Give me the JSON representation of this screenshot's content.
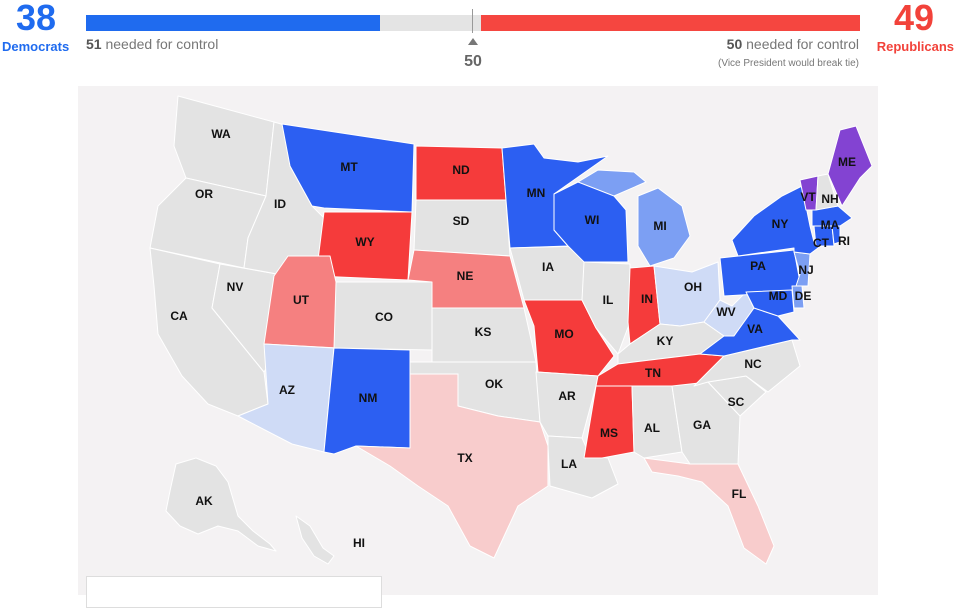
{
  "header": {
    "democrats": {
      "count": "38",
      "label": "Democrats",
      "needed_num": "51",
      "needed_text": " needed for control",
      "color": "#1f6bef"
    },
    "republicans": {
      "count": "49",
      "label": "Republicans",
      "needed_num": "50",
      "needed_text": " needed for control",
      "note": "(Vice President would break tie)",
      "color": "#f2423a"
    },
    "midpoint": "50",
    "seats": {
      "total": 100,
      "dem_fill": 0.38,
      "rep_fill": 0.49
    }
  },
  "colors": {
    "dem_solid": "#2c5ff2",
    "dem_lean": "#7c9ff3",
    "dem_light": "#cfdbf6",
    "rep_solid": "#f53b3b",
    "rep_lean": "#f58080",
    "rep_light": "#f8cccc",
    "independent": "#8343d2",
    "no_race": "#e3e3e3"
  },
  "states": {
    "WA": {
      "label": "WA",
      "status": "no_race"
    },
    "OR": {
      "label": "OR",
      "status": "no_race"
    },
    "CA": {
      "label": "CA",
      "status": "no_race"
    },
    "ID": {
      "label": "ID",
      "status": "no_race"
    },
    "NV": {
      "label": "NV",
      "status": "no_race"
    },
    "MT": {
      "label": "MT",
      "status": "dem_solid"
    },
    "WY": {
      "label": "WY",
      "status": "rep_solid"
    },
    "UT": {
      "label": "UT",
      "status": "rep_lean"
    },
    "AZ": {
      "label": "AZ",
      "status": "dem_light"
    },
    "CO": {
      "label": "CO",
      "status": "no_race"
    },
    "NM": {
      "label": "NM",
      "status": "dem_solid"
    },
    "ND": {
      "label": "ND",
      "status": "rep_solid"
    },
    "SD": {
      "label": "SD",
      "status": "no_race"
    },
    "NE": {
      "label": "NE",
      "status": "rep_lean"
    },
    "KS": {
      "label": "KS",
      "status": "no_race"
    },
    "OK": {
      "label": "OK",
      "status": "no_race"
    },
    "TX": {
      "label": "TX",
      "status": "rep_light"
    },
    "MN": {
      "label": "MN",
      "status": "dem_solid"
    },
    "IA": {
      "label": "IA",
      "status": "no_race"
    },
    "MO": {
      "label": "MO",
      "status": "rep_solid"
    },
    "AR": {
      "label": "AR",
      "status": "no_race"
    },
    "LA": {
      "label": "LA",
      "status": "no_race"
    },
    "WI": {
      "label": "WI",
      "status": "dem_solid"
    },
    "IL": {
      "label": "IL",
      "status": "no_race"
    },
    "MI": {
      "label": "MI",
      "status": "dem_lean"
    },
    "IN": {
      "label": "IN",
      "status": "rep_solid"
    },
    "OH": {
      "label": "OH",
      "status": "dem_light"
    },
    "KY": {
      "label": "KY",
      "status": "no_race"
    },
    "TN": {
      "label": "TN",
      "status": "rep_solid"
    },
    "MS": {
      "label": "MS",
      "status": "rep_solid"
    },
    "AL": {
      "label": "AL",
      "status": "no_race"
    },
    "GA": {
      "label": "GA",
      "status": "no_race"
    },
    "FL": {
      "label": "FL",
      "status": "rep_light"
    },
    "SC": {
      "label": "SC",
      "status": "no_race"
    },
    "NC": {
      "label": "NC",
      "status": "no_race"
    },
    "VA": {
      "label": "VA",
      "status": "dem_solid"
    },
    "WV": {
      "label": "WV",
      "status": "dem_light"
    },
    "PA": {
      "label": "PA",
      "status": "dem_solid"
    },
    "NY": {
      "label": "NY",
      "status": "dem_solid"
    },
    "NJ": {
      "label": "NJ",
      "status": "dem_lean"
    },
    "DE": {
      "label": "DE",
      "status": "dem_lean"
    },
    "MD": {
      "label": "MD",
      "status": "dem_solid"
    },
    "CT": {
      "label": "CT",
      "status": "dem_solid"
    },
    "RI": {
      "label": "RI",
      "status": "dem_solid"
    },
    "MA": {
      "label": "MA",
      "status": "dem_solid"
    },
    "VT": {
      "label": "VT",
      "status": "independent"
    },
    "NH": {
      "label": "NH",
      "status": "no_race"
    },
    "ME": {
      "label": "ME",
      "status": "independent"
    },
    "AK": {
      "label": "AK",
      "status": "no_race"
    },
    "HI": {
      "label": "HI",
      "status": "no_race"
    }
  }
}
